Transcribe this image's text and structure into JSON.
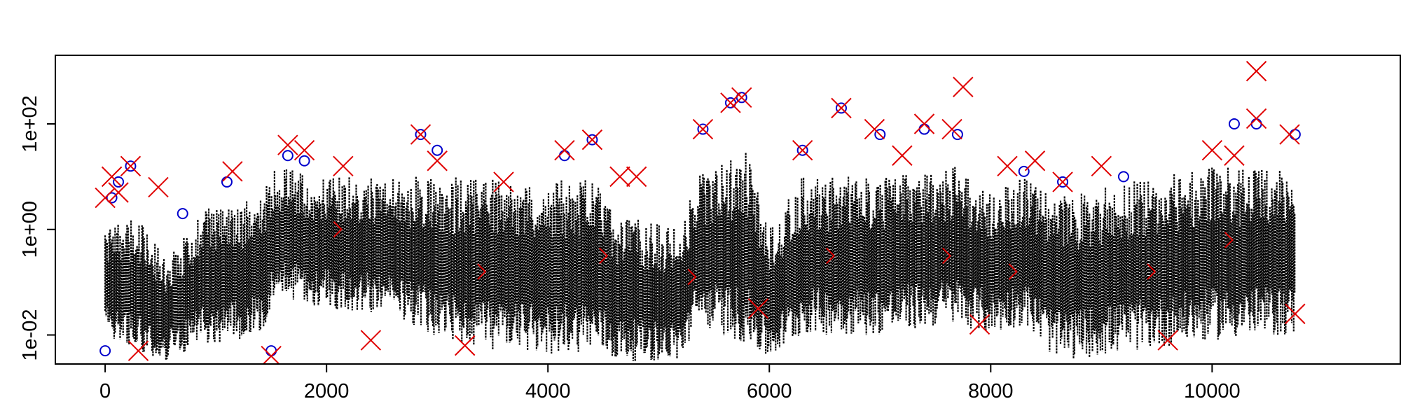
{
  "chart_data": {
    "type": "scatter",
    "title": "",
    "xlabel": "",
    "ylabel": "",
    "y_scale": "log",
    "xlim": [
      -450,
      11700
    ],
    "ylim_log10": [
      -2.55,
      3.3
    ],
    "grid": false,
    "legend": "none",
    "x_ticks": [
      {
        "value": 0,
        "label": "0"
      },
      {
        "value": 2000,
        "label": "2000"
      },
      {
        "value": 4000,
        "label": "4000"
      },
      {
        "value": 6000,
        "label": "6000"
      },
      {
        "value": 8000,
        "label": "8000"
      },
      {
        "value": 10000,
        "label": "10000"
      }
    ],
    "y_ticks": [
      {
        "value": 0.01,
        "log10": -2,
        "label": "1e-02"
      },
      {
        "value": 1,
        "log10": 0,
        "label": "1e+00"
      },
      {
        "value": 100,
        "log10": 2,
        "label": "1e+02"
      }
    ],
    "colors": {
      "series_line": "#000000",
      "circles": "#0000cc",
      "crosses": "#e00000",
      "chevrons": "#e00000"
    },
    "series": [
      {
        "kind": "dotted-vertical-lines",
        "color": "#000000",
        "envelope": [
          {
            "x": 0,
            "lo": -2.0,
            "hi": 0.0
          },
          {
            "x": 300,
            "lo": -2.3,
            "hi": 0.3
          },
          {
            "x": 550,
            "lo": -2.5,
            "hi": -0.6
          },
          {
            "x": 900,
            "lo": -2.2,
            "hi": 0.4
          },
          {
            "x": 1400,
            "lo": -2.0,
            "hi": 0.6
          },
          {
            "x": 1550,
            "lo": -1.3,
            "hi": 1.2
          },
          {
            "x": 1900,
            "lo": -1.5,
            "hi": 1.0
          },
          {
            "x": 2500,
            "lo": -1.6,
            "hi": 1.0
          },
          {
            "x": 3200,
            "lo": -2.2,
            "hi": 1.0
          },
          {
            "x": 3800,
            "lo": -2.4,
            "hi": 0.9
          },
          {
            "x": 4400,
            "lo": -2.3,
            "hi": 1.0
          },
          {
            "x": 4600,
            "lo": -2.5,
            "hi": 0.3
          },
          {
            "x": 5200,
            "lo": -2.5,
            "hi": 0.0
          },
          {
            "x": 5350,
            "lo": -1.8,
            "hi": 1.0
          },
          {
            "x": 5800,
            "lo": -2.2,
            "hi": 1.5
          },
          {
            "x": 6000,
            "lo": -2.5,
            "hi": 0.0
          },
          {
            "x": 6300,
            "lo": -2.0,
            "hi": 1.0
          },
          {
            "x": 7000,
            "lo": -2.0,
            "hi": 1.0
          },
          {
            "x": 7700,
            "lo": -1.8,
            "hi": 1.2
          },
          {
            "x": 8000,
            "lo": -2.0,
            "hi": 0.7
          },
          {
            "x": 8300,
            "lo": -1.8,
            "hi": 1.0
          },
          {
            "x": 8600,
            "lo": -2.5,
            "hi": 0.6
          },
          {
            "x": 9000,
            "lo": -2.4,
            "hi": 0.8
          },
          {
            "x": 10000,
            "lo": -2.1,
            "hi": 1.2
          },
          {
            "x": 10750,
            "lo": -2.0,
            "hi": 1.1
          }
        ]
      },
      {
        "kind": "circles",
        "color": "#0000cc",
        "points": [
          [
            0,
            -2.3
          ],
          [
            60,
            0.6
          ],
          [
            120,
            0.9
          ],
          [
            230,
            1.2
          ],
          [
            700,
            0.3
          ],
          [
            1100,
            0.9
          ],
          [
            1500,
            -2.3
          ],
          [
            1650,
            1.4
          ],
          [
            1800,
            1.3
          ],
          [
            2850,
            1.8
          ],
          [
            3000,
            1.5
          ],
          [
            4150,
            1.4
          ],
          [
            4400,
            1.7
          ],
          [
            5400,
            1.9
          ],
          [
            5650,
            2.4
          ],
          [
            5750,
            2.5
          ],
          [
            6300,
            1.5
          ],
          [
            6650,
            2.3
          ],
          [
            7000,
            1.8
          ],
          [
            7400,
            1.9
          ],
          [
            7700,
            1.8
          ],
          [
            8300,
            1.1
          ],
          [
            8650,
            0.9
          ],
          [
            9200,
            1.0
          ],
          [
            10200,
            2.0
          ],
          [
            10400,
            2.0
          ],
          [
            10750,
            1.8
          ]
        ]
      },
      {
        "kind": "crosses",
        "color": "#e00000",
        "points": [
          [
            0,
            0.6
          ],
          [
            60,
            1.0
          ],
          [
            120,
            0.7
          ],
          [
            230,
            1.2
          ],
          [
            300,
            -2.3
          ],
          [
            480,
            0.8
          ],
          [
            1150,
            1.1
          ],
          [
            1500,
            -2.4
          ],
          [
            1650,
            1.6
          ],
          [
            1800,
            1.5
          ],
          [
            2150,
            1.2
          ],
          [
            2400,
            -2.1
          ],
          [
            2850,
            1.8
          ],
          [
            3000,
            1.3
          ],
          [
            3250,
            -2.2
          ],
          [
            3600,
            0.9
          ],
          [
            4150,
            1.5
          ],
          [
            4400,
            1.7
          ],
          [
            4650,
            1.0
          ],
          [
            4800,
            1.0
          ],
          [
            5400,
            1.9
          ],
          [
            5650,
            2.4
          ],
          [
            5750,
            2.5
          ],
          [
            5900,
            -1.5
          ],
          [
            6300,
            1.5
          ],
          [
            6650,
            2.3
          ],
          [
            6950,
            1.9
          ],
          [
            7200,
            1.4
          ],
          [
            7400,
            2.0
          ],
          [
            7650,
            1.9
          ],
          [
            7750,
            2.7
          ],
          [
            7900,
            -1.8
          ],
          [
            8150,
            1.2
          ],
          [
            8400,
            1.3
          ],
          [
            8650,
            0.9
          ],
          [
            9000,
            1.2
          ],
          [
            9600,
            -2.1
          ],
          [
            10000,
            1.5
          ],
          [
            10200,
            1.4
          ],
          [
            10400,
            3.0
          ],
          [
            10400,
            2.1
          ],
          [
            10700,
            1.8
          ],
          [
            10750,
            -1.6
          ]
        ]
      },
      {
        "kind": "chevrons",
        "color": "#e00000",
        "points": [
          [
            2100,
            0.0
          ],
          [
            3400,
            -0.8
          ],
          [
            4500,
            -0.5
          ],
          [
            5300,
            -0.9
          ],
          [
            6550,
            -0.5
          ],
          [
            7600,
            -0.5
          ],
          [
            8200,
            -0.8
          ],
          [
            9450,
            -0.8
          ],
          [
            10150,
            -0.2
          ]
        ]
      }
    ]
  }
}
